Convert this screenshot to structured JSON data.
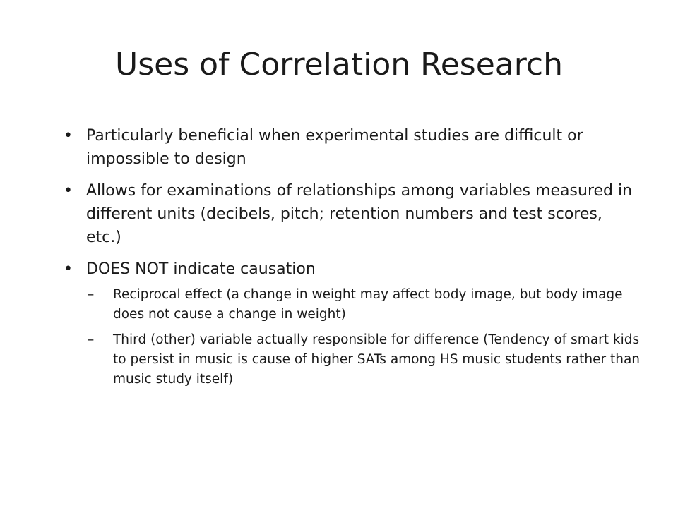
{
  "slide": {
    "title": "Uses of Correlation Research",
    "bullets": [
      {
        "marker": "•",
        "text": "Particularly beneficial when experimental studies are difficult or impossible to design"
      },
      {
        "marker": "•",
        "text": "Allows for examinations of relationships among variables measured in different units (decibels, pitch; retention numbers and test scores, etc.)"
      },
      {
        "marker": "•",
        "text": "DOES NOT indicate causation",
        "subbullets": [
          {
            "marker": "–",
            "text": "Reciprocal effect (a change in weight may affect body image, but body image does not cause a change in weight)"
          },
          {
            "marker": "–",
            "text": "Third (other) variable actually responsible for difference (Tendency of smart kids to persist in music is cause of higher SATs among HS music students rather than music study itself)"
          }
        ]
      }
    ]
  }
}
